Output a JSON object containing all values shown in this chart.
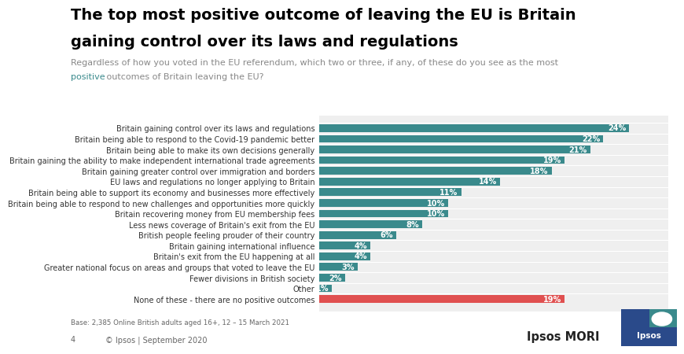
{
  "title_line1": "The top most positive outcome of leaving the EU is Britain",
  "title_line2": "gaining control over its laws and regulations",
  "subtitle_gray": "Regardless of how you voted in the EU referendum, which two or three, if any, of these do you see as the most",
  "subtitle_highlight": "positive",
  "subtitle_end": " outcomes of Britain leaving the EU?",
  "categories": [
    "Britain gaining control over its laws and regulations",
    "Britain being able to respond to the Covid-19 pandemic better",
    "Britain being able to make its own decisions generally",
    "Britain gaining the ability to make independent international trade agreements",
    "Britain gaining greater control over immigration and borders",
    "EU laws and regulations no longer applying to Britain",
    "Britain being able to support its economy and businesses more effectively",
    "Britain being able to respond to new challenges and opportunities more quickly",
    "Britain recovering money from EU membership fees",
    "Less news coverage of Britain's exit from the EU",
    "British people feeling prouder of their country",
    "Britain gaining international influence",
    "Britain's exit from the EU happening at all",
    "Greater national focus on areas and groups that voted to leave the EU",
    "Fewer divisions in British society",
    "Other",
    "None of these - there are no positive outcomes"
  ],
  "values": [
    24,
    22,
    21,
    19,
    18,
    14,
    11,
    10,
    10,
    8,
    6,
    4,
    4,
    3,
    2,
    1,
    19
  ],
  "bar_colors": [
    "#3a8a8c",
    "#3a8a8c",
    "#3a8a8c",
    "#3a8a8c",
    "#3a8a8c",
    "#3a8a8c",
    "#3a8a8c",
    "#3a8a8c",
    "#3a8a8c",
    "#3a8a8c",
    "#3a8a8c",
    "#3a8a8c",
    "#3a8a8c",
    "#3a8a8c",
    "#3a8a8c",
    "#3a8a8c",
    "#e05050"
  ],
  "teal_color": "#3a8a8c",
  "base_text": "Base: 2,385 Online British adults aged 16+, 12 – 15 March 2021",
  "footer_num": "4",
  "footer_copy": "© Ipsos | September 2020",
  "bg_color": "#ffffff",
  "chart_bg": "#efefef",
  "title_fontsize": 14,
  "subtitle_fontsize": 8,
  "bar_label_fontsize": 7,
  "category_fontsize": 7,
  "xlim": [
    0,
    27
  ]
}
